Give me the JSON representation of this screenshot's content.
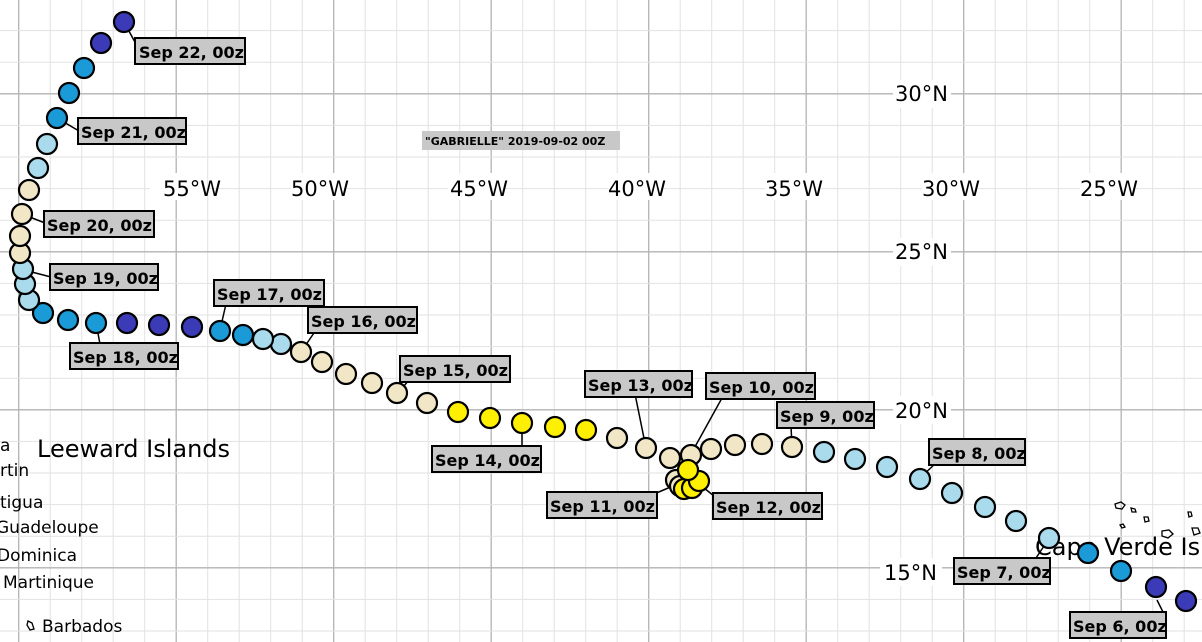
{
  "title": "\"GABRIELLE\" 2019-09-02 00Z",
  "longitude_labels": [
    "55°W",
    "50°W",
    "45°W",
    "40°W",
    "35°W",
    "30°W",
    "25°W"
  ],
  "latitude_labels": [
    "30°N",
    "25°N",
    "20°N",
    "15°N"
  ],
  "places": {
    "leeward": "Leeward Islands",
    "martin": "rtin",
    "antigua": "tigua",
    "guadeloupe": "Guadeloupe",
    "dominica": "Dominica",
    "martinique": "Martinique",
    "barbados": "Barbados",
    "cape_verde": "Cape Verde Is",
    "a_stub": "a"
  },
  "date_labels": [
    "Sep 22, 00z",
    "Sep 21, 00z",
    "Sep 20, 00z",
    "Sep 19, 00z",
    "Sep 18, 00z",
    "Sep 17, 00z",
    "Sep 16, 00z",
    "Sep 15, 00z",
    "Sep 14, 00z",
    "Sep 13, 00z",
    "Sep 10, 00z",
    "Sep 9, 00z",
    "Sep 8, 00z",
    "Sep 11, 00z",
    "Sep 12, 00z",
    "Sep 7, 00z",
    "Sep 6, 00z"
  ],
  "colors": {
    "deep": "#3b3bb7",
    "blue": "#1b9ad8",
    "light_blue": "#a9dbec",
    "cream": "#f1e6c6",
    "yellow": "#ffef00",
    "grid_minor": "#e2e2e2",
    "grid_major": "#b3b3b3",
    "label_bg": "#c8c8c8"
  }
}
